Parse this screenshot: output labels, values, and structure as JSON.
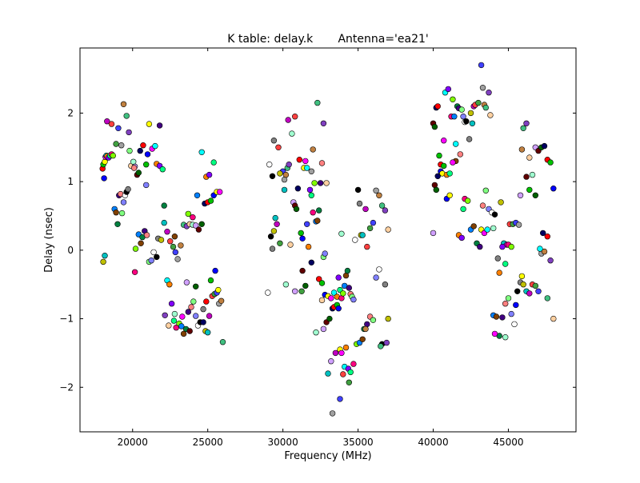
{
  "chart_data": {
    "type": "scatter",
    "title": "K table: delay.k       Antenna='ea21'",
    "xlabel": "Frequency (MHz)",
    "ylabel": "Delay (nsec)",
    "xlim": [
      16500,
      49500
    ],
    "ylim": [
      -2.65,
      2.95
    ],
    "xticks": [
      20000,
      25000,
      30000,
      35000,
      40000,
      45000
    ],
    "xtick_labels": [
      "20000",
      "25000",
      "30000",
      "35000",
      "40000",
      "45000"
    ],
    "yticks": [
      -2,
      -1,
      0,
      1,
      2
    ],
    "ytick_labels": [
      "−2",
      "−1",
      "0",
      "1",
      "2"
    ],
    "grid": false,
    "marker_colors": [
      "#ff0000",
      "#00c000",
      "#0000ff",
      "#ffff00",
      "#ff00ff",
      "#00ffff",
      "#ff8000",
      "#8000ff",
      "#00ff80",
      "#ff0080",
      "#80ff00",
      "#0080ff",
      "#804000",
      "#008040",
      "#400080",
      "#ff8080",
      "#80ff80",
      "#8080ff",
      "#ffffff",
      "#000000",
      "#808080",
      "#c0c000",
      "#00c0c0",
      "#c000c0",
      "#ff4040",
      "#40a040",
      "#4040ff",
      "#a0a0a0",
      "#c08040",
      "#40c080",
      "#8040c0",
      "#ffd0a0",
      "#a0ffd0",
      "#d0a0ff",
      "#600000",
      "#006000",
      "#000060"
    ],
    "points": [
      [
        18000,
        1.19
      ],
      [
        18050,
        1.25
      ],
      [
        18100,
        1.05
      ],
      [
        18150,
        1.29
      ],
      [
        18200,
        1.36
      ],
      [
        18250,
        1.38
      ],
      [
        18300,
        1.37
      ],
      [
        18400,
        1.35
      ],
      [
        18500,
        1.38
      ],
      [
        18600,
        1.4
      ],
      [
        18700,
        1.38
      ],
      [
        18800,
        0.6
      ],
      [
        18900,
        0.55
      ],
      [
        19000,
        0.38
      ],
      [
        19100,
        0.8
      ],
      [
        19200,
        0.82
      ],
      [
        19300,
        0.54
      ],
      [
        19400,
        0.7
      ],
      [
        19500,
        0.8
      ],
      [
        19600,
        0.85
      ],
      [
        19700,
        0.89
      ],
      [
        18050,
        -0.17
      ],
      [
        18150,
        -0.08
      ],
      [
        18300,
        1.88
      ],
      [
        18600,
        1.84
      ],
      [
        18900,
        1.55
      ],
      [
        19050,
        1.78
      ],
      [
        19250,
        1.53
      ],
      [
        19400,
        2.13
      ],
      [
        19600,
        1.96
      ],
      [
        19750,
        1.72
      ],
      [
        19900,
        1.23
      ],
      [
        20050,
        1.29
      ],
      [
        20150,
        1.22
      ],
      [
        20300,
        1.1
      ],
      [
        20400,
        1.13
      ],
      [
        20500,
        1.45
      ],
      [
        20700,
        1.53
      ],
      [
        20900,
        1.25
      ],
      [
        21000,
        1.4
      ],
      [
        21100,
        1.84
      ],
      [
        21300,
        1.48
      ],
      [
        21500,
        1.52
      ],
      [
        21600,
        1.26
      ],
      [
        21800,
        1.23
      ],
      [
        22000,
        1.18
      ],
      [
        20150,
        -0.32
      ],
      [
        20200,
        0.02
      ],
      [
        20400,
        0.23
      ],
      [
        20550,
        0.1
      ],
      [
        20650,
        0.19
      ],
      [
        20800,
        0.28
      ],
      [
        20950,
        0.22
      ],
      [
        21100,
        -0.17
      ],
      [
        21250,
        -0.15
      ],
      [
        21400,
        -0.03
      ],
      [
        21600,
        -0.1
      ],
      [
        21700,
        0.17
      ],
      [
        21900,
        0.15
      ],
      [
        22100,
        0.4
      ],
      [
        22300,
        0.27
      ],
      [
        22500,
        0.13
      ],
      [
        22700,
        0.05
      ],
      [
        22850,
        -0.03
      ],
      [
        23000,
        -0.13
      ],
      [
        23200,
        0.07
      ],
      [
        23400,
        0.37
      ],
      [
        23600,
        0.35
      ],
      [
        23800,
        0.38
      ],
      [
        24000,
        0.37
      ],
      [
        24200,
        0.36
      ],
      [
        24400,
        0.3
      ],
      [
        24600,
        0.38
      ],
      [
        24800,
        0.68
      ],
      [
        25000,
        0.7
      ],
      [
        25200,
        0.72
      ],
      [
        25400,
        0.8
      ],
      [
        25600,
        0.85
      ],
      [
        25800,
        0.85
      ],
      [
        22300,
        -0.44
      ],
      [
        22450,
        -0.5
      ],
      [
        22600,
        -0.78
      ],
      [
        22750,
        -1.03
      ],
      [
        22900,
        -1.13
      ],
      [
        23100,
        -1.07
      ],
      [
        23250,
        -1.11
      ],
      [
        23400,
        -1.22
      ],
      [
        23550,
        -1.15
      ],
      [
        23700,
        -0.9
      ],
      [
        23900,
        -0.83
      ],
      [
        24050,
        -0.75
      ],
      [
        24200,
        -0.96
      ],
      [
        24350,
        -1.1
      ],
      [
        24500,
        -1.05
      ],
      [
        24700,
        -0.86
      ],
      [
        24850,
        -1.18
      ],
      [
        25000,
        -1.2
      ],
      [
        25100,
        -0.96
      ],
      [
        25300,
        -0.67
      ],
      [
        25450,
        -0.64
      ],
      [
        25600,
        -0.62
      ],
      [
        25750,
        -0.78
      ],
      [
        25900,
        -0.74
      ],
      [
        26000,
        -1.34
      ],
      [
        22150,
        -0.95
      ],
      [
        22400,
        -1.1
      ],
      [
        22800,
        -0.93
      ],
      [
        23600,
        -0.47
      ],
      [
        23800,
        -1.18
      ],
      [
        24200,
        -0.53
      ],
      [
        24700,
        -1.05
      ],
      [
        24900,
        -0.75
      ],
      [
        25200,
        -0.44
      ],
      [
        25500,
        -0.3
      ],
      [
        25700,
        -0.58
      ],
      [
        23300,
        -0.97
      ],
      [
        24600,
        1.43
      ],
      [
        24900,
        1.07
      ],
      [
        25100,
        1.1
      ],
      [
        25400,
        1.28
      ],
      [
        24000,
        0.48
      ],
      [
        23700,
        0.53
      ],
      [
        24300,
        0.8
      ],
      [
        22800,
        0.2
      ],
      [
        22100,
        0.65
      ],
      [
        21800,
        1.82
      ],
      [
        20100,
        1.2
      ],
      [
        19800,
        1.45
      ],
      [
        20900,
        0.95
      ],
      [
        29000,
        -0.62
      ],
      [
        29200,
        0.2
      ],
      [
        29300,
        0.02
      ],
      [
        29400,
        0.28
      ],
      [
        29500,
        0.47
      ],
      [
        29600,
        0.38
      ],
      [
        29700,
        1.5
      ],
      [
        29800,
        0.1
      ],
      [
        30000,
        1.15
      ],
      [
        30100,
        1.03
      ],
      [
        30200,
        1.1
      ],
      [
        30300,
        1.2
      ],
      [
        30400,
        1.25
      ],
      [
        30500,
        0.08
      ],
      [
        30600,
        1.7
      ],
      [
        30700,
        0.7
      ],
      [
        30800,
        0.65
      ],
      [
        30900,
        0.6
      ],
      [
        31000,
        0.9
      ],
      [
        31100,
        1.32
      ],
      [
        31200,
        0.25
      ],
      [
        31300,
        0.17
      ],
      [
        31400,
        1.2
      ],
      [
        31500,
        1.3
      ],
      [
        31600,
        1.2
      ],
      [
        31700,
        0.05
      ],
      [
        31800,
        0.88
      ],
      [
        31900,
        0.8
      ],
      [
        32000,
        0.55
      ],
      [
        32100,
        0.98
      ],
      [
        32200,
        0.42
      ],
      [
        32300,
        0.43
      ],
      [
        32400,
        0.58
      ],
      [
        32500,
        0.98
      ],
      [
        32600,
        1.27
      ],
      [
        32700,
        -0.1
      ],
      [
        32800,
        -0.05
      ],
      [
        29100,
        1.25
      ],
      [
        29300,
        1.08
      ],
      [
        29400,
        1.6
      ],
      [
        29800,
        1.12
      ],
      [
        30100,
        0.88
      ],
      [
        30350,
        1.9
      ],
      [
        30800,
        1.95
      ],
      [
        31250,
        -0.6
      ],
      [
        31600,
        0.38
      ],
      [
        31900,
        1.15
      ],
      [
        32000,
        1.47
      ],
      [
        32300,
        2.15
      ],
      [
        32700,
        1.85
      ],
      [
        32900,
        0.98
      ],
      [
        30200,
        -0.5
      ],
      [
        30800,
        -0.6
      ],
      [
        31300,
        -0.3
      ],
      [
        31500,
        -0.52
      ],
      [
        31900,
        -0.18
      ],
      [
        32400,
        -0.42
      ],
      [
        32600,
        -0.48
      ],
      [
        32800,
        -0.65
      ],
      [
        33000,
        -0.67
      ],
      [
        33200,
        -0.7
      ],
      [
        33400,
        -0.62
      ],
      [
        33600,
        -0.68
      ],
      [
        33700,
        -0.4
      ],
      [
        33800,
        -0.58
      ],
      [
        33900,
        -0.7
      ],
      [
        34000,
        -0.63
      ],
      [
        34100,
        -0.52
      ],
      [
        34200,
        -0.37
      ],
      [
        34300,
        -0.3
      ],
      [
        34400,
        -0.55
      ],
      [
        34500,
        -0.64
      ],
      [
        34600,
        -0.68
      ],
      [
        34700,
        -0.72
      ],
      [
        34800,
        0.15
      ],
      [
        35000,
        0.88
      ],
      [
        35100,
        0.68
      ],
      [
        35200,
        0.22
      ],
      [
        35300,
        0.22
      ],
      [
        35500,
        0.6
      ],
      [
        35600,
        0.05
      ],
      [
        35800,
        0.32
      ],
      [
        36000,
        0.4
      ],
      [
        36200,
        0.87
      ],
      [
        36400,
        0.8
      ],
      [
        36600,
        0.65
      ],
      [
        36800,
        0.58
      ],
      [
        37000,
        0.3
      ],
      [
        32200,
        -1.2
      ],
      [
        32700,
        -1.15
      ],
      [
        32900,
        -1.05
      ],
      [
        33100,
        -1.0
      ],
      [
        33300,
        -0.85
      ],
      [
        33400,
        -0.83
      ],
      [
        33600,
        -0.8
      ],
      [
        33700,
        -0.85
      ],
      [
        33800,
        -1.45
      ],
      [
        33900,
        -1.5
      ],
      [
        34100,
        -1.7
      ],
      [
        34200,
        -1.42
      ],
      [
        34350,
        -1.73
      ],
      [
        34500,
        -1.78
      ],
      [
        34700,
        -1.66
      ],
      [
        34900,
        -1.37
      ],
      [
        35100,
        -1.35
      ],
      [
        35300,
        -1.3
      ],
      [
        35400,
        -1.15
      ],
      [
        35600,
        -1.08
      ],
      [
        35800,
        -0.97
      ],
      [
        36000,
        -1.02
      ],
      [
        36200,
        -0.4
      ],
      [
        36400,
        -0.28
      ],
      [
        36600,
        -1.37
      ],
      [
        36800,
        -0.5
      ],
      [
        37000,
        -1.0
      ],
      [
        33000,
        -1.8
      ],
      [
        33500,
        -1.5
      ],
      [
        34000,
        -1.81
      ],
      [
        34400,
        -1.93
      ],
      [
        33800,
        -2.17
      ],
      [
        33300,
        -2.38
      ],
      [
        35500,
        -1.15
      ],
      [
        36500,
        -1.4
      ],
      [
        36900,
        -1.35
      ],
      [
        32600,
        -0.73
      ],
      [
        33900,
        0.24
      ],
      [
        33200,
        -1.62
      ],
      [
        40000,
        1.85
      ],
      [
        40100,
        1.8
      ],
      [
        40200,
        2.08
      ],
      [
        40300,
        2.1
      ],
      [
        40400,
        1.38
      ],
      [
        40500,
        1.15
      ],
      [
        40600,
        1.12
      ],
      [
        40700,
        1.6
      ],
      [
        40800,
        2.3
      ],
      [
        40900,
        1.1
      ],
      [
        41000,
        2.35
      ],
      [
        41100,
        1.12
      ],
      [
        41200,
        1.95
      ],
      [
        41300,
        2.2
      ],
      [
        41400,
        1.95
      ],
      [
        41500,
        1.3
      ],
      [
        41600,
        2.1
      ],
      [
        41700,
        2.07
      ],
      [
        41800,
        1.4
      ],
      [
        41900,
        2.05
      ],
      [
        42000,
        1.95
      ],
      [
        42100,
        1.87
      ],
      [
        42200,
        1.88
      ],
      [
        42400,
        1.62
      ],
      [
        42500,
        2.0
      ],
      [
        42600,
        1.85
      ],
      [
        42700,
        2.1
      ],
      [
        42800,
        2.12
      ],
      [
        43000,
        2.15
      ],
      [
        43200,
        2.7
      ],
      [
        43300,
        2.37
      ],
      [
        43400,
        2.12
      ],
      [
        43500,
        2.08
      ],
      [
        43700,
        2.3
      ],
      [
        43800,
        1.97
      ],
      [
        44000,
        0.32
      ],
      [
        40000,
        0.25
      ],
      [
        40100,
        0.95
      ],
      [
        40200,
        0.88
      ],
      [
        40300,
        1.08
      ],
      [
        40500,
        1.25
      ],
      [
        40700,
        1.23
      ],
      [
        40900,
        0.75
      ],
      [
        41100,
        0.8
      ],
      [
        41300,
        1.28
      ],
      [
        41500,
        1.55
      ],
      [
        41700,
        0.22
      ],
      [
        41900,
        0.18
      ],
      [
        42000,
        0.6
      ],
      [
        42100,
        0.75
      ],
      [
        42300,
        0.72
      ],
      [
        42500,
        0.3
      ],
      [
        42700,
        0.35
      ],
      [
        42900,
        0.1
      ],
      [
        43100,
        0.05
      ],
      [
        43300,
        0.65
      ],
      [
        43500,
        0.87
      ],
      [
        43700,
        0.6
      ],
      [
        43900,
        0.55
      ],
      [
        44100,
        0.52
      ],
      [
        44300,
        -0.12
      ],
      [
        44500,
        0.7
      ],
      [
        44700,
        0.1
      ],
      [
        44900,
        0.08
      ],
      [
        45100,
        0.38
      ],
      [
        45300,
        0.38
      ],
      [
        45500,
        0.4
      ],
      [
        45700,
        0.37
      ],
      [
        45900,
        1.47
      ],
      [
        46000,
        1.78
      ],
      [
        46200,
        1.85
      ],
      [
        46400,
        1.35
      ],
      [
        46600,
        1.1
      ],
      [
        46800,
        1.5
      ],
      [
        47000,
        1.45
      ],
      [
        47200,
        1.5
      ],
      [
        47400,
        1.52
      ],
      [
        47600,
        1.32
      ],
      [
        47800,
        1.28
      ],
      [
        48000,
        0.9
      ],
      [
        43200,
        0.3
      ],
      [
        43400,
        0.25
      ],
      [
        43600,
        0.3
      ],
      [
        44400,
        -0.33
      ],
      [
        44600,
        0.05
      ],
      [
        44800,
        -0.2
      ],
      [
        45000,
        0.08
      ],
      [
        45200,
        0.05
      ],
      [
        44000,
        -0.95
      ],
      [
        44200,
        -0.97
      ],
      [
        44400,
        -1.25
      ],
      [
        44600,
        -0.98
      ],
      [
        44800,
        -0.78
      ],
      [
        45000,
        -0.7
      ],
      [
        45200,
        -0.93
      ],
      [
        45400,
        -1.08
      ],
      [
        45600,
        -0.6
      ],
      [
        45800,
        -0.47
      ],
      [
        46000,
        -0.5
      ],
      [
        46200,
        -0.6
      ],
      [
        46400,
        -0.63
      ],
      [
        46600,
        -0.5
      ],
      [
        46800,
        -0.52
      ],
      [
        47000,
        -0.6
      ],
      [
        47200,
        -0.05
      ],
      [
        47400,
        -0.02
      ],
      [
        47600,
        -0.7
      ],
      [
        47800,
        -0.15
      ],
      [
        48000,
        -1.0
      ],
      [
        44800,
        -1.27
      ],
      [
        45800,
        0.8
      ],
      [
        46200,
        1.07
      ],
      [
        46800,
        0.8
      ],
      [
        47300,
        0.25
      ],
      [
        47600,
        0.2
      ],
      [
        46400,
        0.88
      ],
      [
        45500,
        -0.8
      ],
      [
        45900,
        -0.38
      ],
      [
        44100,
        -1.22
      ],
      [
        47100,
        0.02
      ]
    ]
  }
}
